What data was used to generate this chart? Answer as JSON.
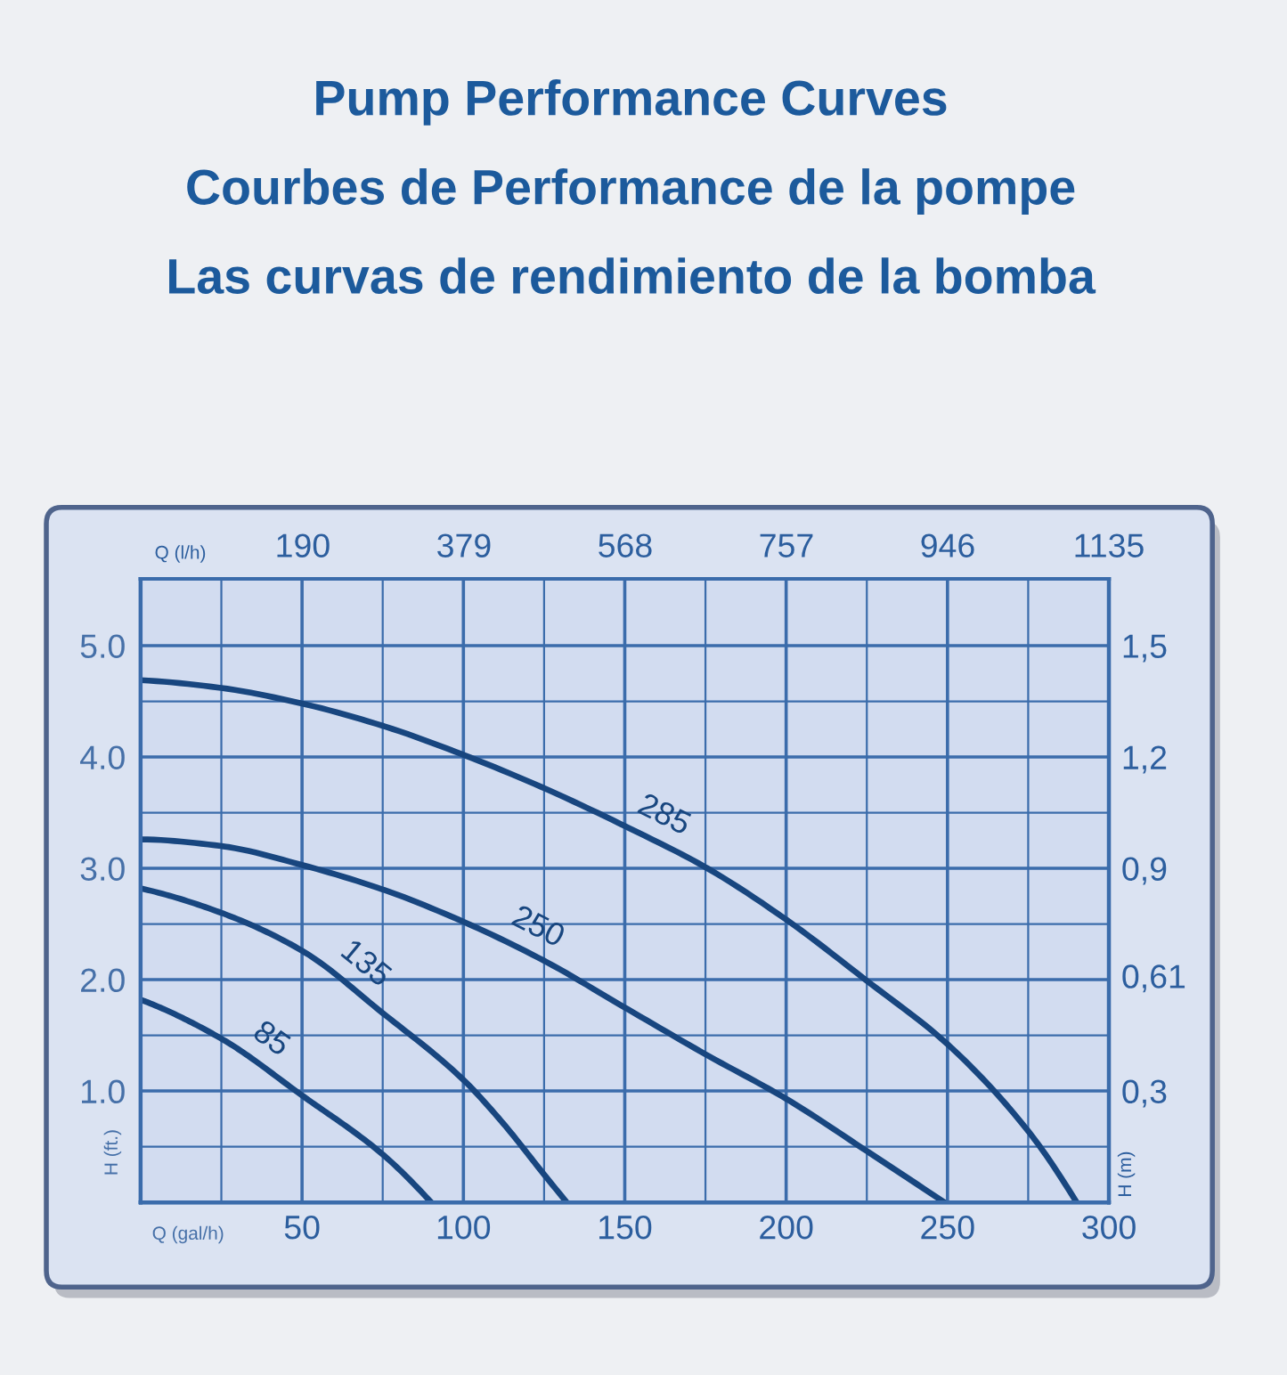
{
  "chart_data": {
    "type": "line",
    "title": "Pump Performance Curves\nCourbes de Performance de la pompe\nLas curvas de rendimiento de la bomba",
    "xlabel": "Q (gal/h)",
    "x2label": "Q (l/h)",
    "ylabel": "H (ft.)",
    "y2label": "H (m)",
    "series": [
      {
        "name": "285",
        "color": "#18467f",
        "x": [
          0,
          25,
          50,
          75,
          100,
          125,
          150,
          175,
          200,
          225,
          250,
          275,
          290
        ],
        "values": [
          4.69,
          4.62,
          4.48,
          4.28,
          4.02,
          3.72,
          3.38,
          3.01,
          2.54,
          1.99,
          1.42,
          0.64,
          0
        ]
      },
      {
        "name": "250",
        "color": "#18467f",
        "x": [
          0,
          25,
          50,
          75,
          100,
          125,
          150,
          175,
          200,
          225,
          249
        ],
        "values": [
          3.26,
          3.2,
          3.03,
          2.81,
          2.52,
          2.17,
          1.75,
          1.33,
          0.93,
          0.46,
          0
        ]
      },
      {
        "name": "135",
        "color": "#18467f",
        "x": [
          0,
          25,
          50,
          75,
          100,
          112,
          125,
          132
        ],
        "values": [
          2.82,
          2.6,
          2.26,
          1.7,
          1.1,
          0.72,
          0.25,
          0
        ]
      },
      {
        "name": "85",
        "color": "#18467f",
        "x": [
          0,
          25,
          50,
          75,
          90
        ],
        "values": [
          1.82,
          1.47,
          0.96,
          0.43,
          0
        ]
      }
    ],
    "xlim": [
      0,
      300
    ],
    "xticks": [
      {
        "value": 25,
        "label": null
      },
      50,
      {
        "value": 75,
        "label": null
      },
      100,
      {
        "value": 125,
        "label": null
      },
      150,
      {
        "value": 175,
        "label": null
      },
      200,
      {
        "value": 225,
        "label": null
      },
      250,
      {
        "value": 275,
        "label": null
      },
      300
    ],
    "ylim": [
      0,
      5.6
    ],
    "yticks": [
      {
        "value": 0.5,
        "label": null
      },
      {
        "value": 1,
        "label": "1.0"
      },
      {
        "value": 1.5,
        "label": null
      },
      {
        "value": 2,
        "label": "2.0"
      },
      {
        "value": 2.5,
        "label": null
      },
      {
        "value": 3,
        "label": "3.0"
      },
      {
        "value": 3.5,
        "label": null
      },
      {
        "value": 4,
        "label": "4.0"
      },
      {
        "value": 4.5,
        "label": null
      },
      {
        "value": 5,
        "label": "5.0"
      }
    ],
    "x2lim": [
      0,
      1135
    ],
    "x2ticks": [
      190,
      379,
      568,
      757,
      946,
      1135
    ],
    "y2lim": [
      0,
      1.68
    ],
    "y2ticks": [
      {
        "value": 0.3,
        "label": "0,3"
      },
      {
        "value": 0.61,
        "label": "0,61"
      },
      {
        "value": 0.9,
        "label": "0,9"
      },
      {
        "value": 1.2,
        "label": "1,2"
      },
      {
        "value": 1.5,
        "label": "1,5"
      }
    ],
    "grid": true,
    "line_style": "solid"
  }
}
